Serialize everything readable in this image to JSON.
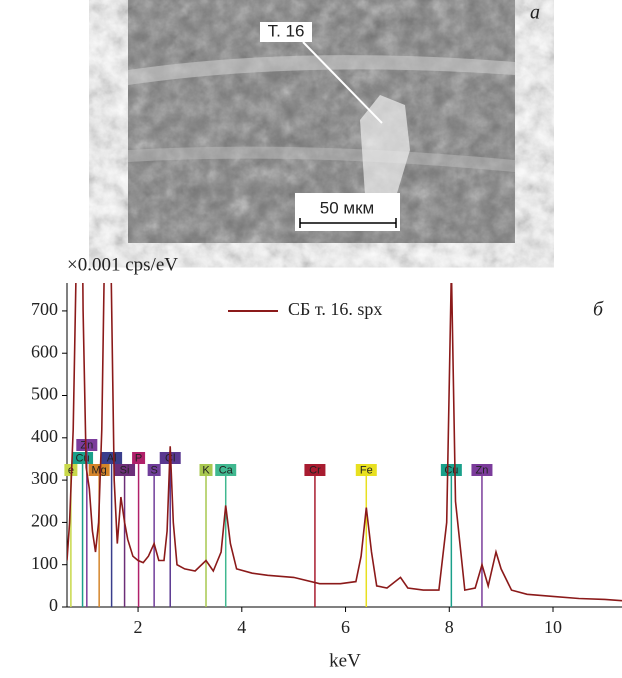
{
  "image": {
    "point_label": "Т. 16",
    "scale_bar": "50 мкм",
    "panel_label": "а"
  },
  "chart_data": {
    "type": "line",
    "y_axis_label": "×0.001 cps/eV",
    "x_axis_label": "keV",
    "panel_label": "б",
    "legend": "upper right",
    "xlim": [
      0.63,
      11.33
    ],
    "xticks": [
      2,
      4,
      6,
      8,
      10
    ],
    "ylim": [
      0,
      766
    ],
    "yticks": [
      0,
      100,
      200,
      300,
      400,
      500,
      600,
      700
    ],
    "x": [
      0.63,
      0.68,
      0.75,
      0.82,
      0.88,
      0.94,
      1.0,
      1.06,
      1.12,
      1.18,
      1.24,
      1.3,
      1.36,
      1.42,
      1.48,
      1.54,
      1.6,
      1.67,
      1.74,
      1.8,
      1.9,
      2.0,
      2.1,
      2.2,
      2.31,
      2.4,
      2.5,
      2.56,
      2.62,
      2.68,
      2.75,
      2.9,
      3.1,
      3.31,
      3.45,
      3.6,
      3.69,
      3.78,
      3.9,
      4.2,
      4.5,
      5.0,
      5.5,
      5.9,
      6.2,
      6.3,
      6.4,
      6.5,
      6.6,
      6.8,
      7.06,
      7.2,
      7.5,
      7.8,
      7.95,
      8.04,
      8.12,
      8.3,
      8.5,
      8.63,
      8.75,
      8.9,
      9.0,
      9.2,
      9.5,
      10.0,
      10.5,
      11.0,
      11.33
    ],
    "series": [
      {
        "name": "СБ т. 16. spx",
        "color": "#8b1a1a",
        "values": [
          110,
          200,
          420,
          900,
          1500,
          700,
          330,
          280,
          180,
          130,
          200,
          420,
          900,
          1500,
          800,
          300,
          150,
          260,
          200,
          160,
          120,
          110,
          105,
          120,
          150,
          110,
          110,
          180,
          380,
          200,
          100,
          90,
          85,
          110,
          85,
          130,
          240,
          150,
          90,
          80,
          75,
          70,
          55,
          55,
          60,
          120,
          235,
          130,
          50,
          45,
          70,
          45,
          40,
          40,
          200,
          800,
          250,
          40,
          45,
          100,
          50,
          130,
          90,
          40,
          30,
          25,
          20,
          18,
          15
        ]
      }
    ],
    "peaks": [
      {
        "label": "e",
        "energy": 0.705,
        "color": "#c8d84a"
      },
      {
        "label": "Cu",
        "energy": 0.93,
        "color": "#1aa08a"
      },
      {
        "label": "Zn",
        "energy": 1.012,
        "color": "#7b3c9b"
      },
      {
        "label": "Mg",
        "energy": 1.25,
        "color": "#d4852a"
      },
      {
        "label": "Al",
        "energy": 1.49,
        "color": "#3a3e8c"
      },
      {
        "label": "Si",
        "energy": 1.74,
        "color": "#6c2e78"
      },
      {
        "label": "P",
        "energy": 2.01,
        "color": "#b0206a"
      },
      {
        "label": "S",
        "energy": 2.31,
        "color": "#703d9a"
      },
      {
        "label": "Cl",
        "energy": 2.62,
        "color": "#5a3890"
      },
      {
        "label": "K",
        "energy": 3.31,
        "color": "#a8c850"
      },
      {
        "label": "Ca",
        "energy": 3.69,
        "color": "#40b890"
      },
      {
        "label": "Cr",
        "energy": 5.41,
        "color": "#a81c30"
      },
      {
        "label": "Fe",
        "energy": 6.4,
        "color": "#e8e020"
      },
      {
        "label": "Cu",
        "energy": 8.04,
        "color": "#1aa08a"
      },
      {
        "label": "Zn",
        "energy": 8.63,
        "color": "#7b3c9b"
      }
    ]
  }
}
